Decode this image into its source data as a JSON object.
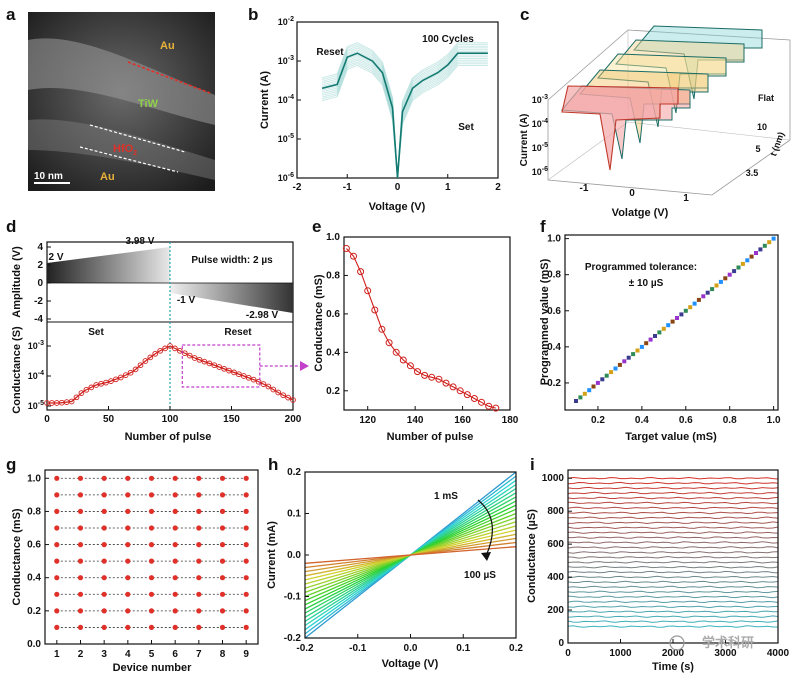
{
  "panels": {
    "a": {
      "letter": "a",
      "labels": {
        "au_top": "Au",
        "tiw": "TiW",
        "hfo2": "HfO",
        "hfo2_sub": "2",
        "au_bottom": "Au",
        "scale": "10 nm"
      },
      "colors": {
        "au": "#e8b23a",
        "tiw": "#8fcf4a",
        "hfo2": "#e0302a"
      }
    },
    "b": {
      "letter": "b",
      "annot": {
        "reset": "Reset",
        "cycles": "100 Cycles",
        "set": "Set"
      }
    },
    "c": {
      "letter": "c",
      "depth_title": "t (nm)",
      "depth_labels": [
        "Flat",
        "10",
        "5",
        "3.5"
      ],
      "colors": [
        "#f08a8a",
        "#f2c46a",
        "#f3e39a",
        "#f6d08a",
        "#8fd6d6"
      ]
    },
    "d": {
      "letter": "d",
      "annot": {
        "v2": "2 V",
        "v398": "3.98 V",
        "pw": "Pulse width: 2 µs",
        "vm1": "-1 V",
        "vm298": "-2.98 V",
        "set": "Set",
        "reset": "Reset"
      }
    },
    "e": {
      "letter": "e"
    },
    "f": {
      "letter": "f",
      "annot": {
        "line1": "Programmed tolerance:",
        "line2": "± 10 µS"
      }
    },
    "g": {
      "letter": "g"
    },
    "h": {
      "letter": "h",
      "annot": {
        "top": "1 mS",
        "bottom": "100 µS"
      }
    },
    "i": {
      "letter": "i",
      "watermark": "学术科研"
    }
  },
  "chart_data": [
    {
      "id": "b",
      "type": "line",
      "xlabel": "Voltage (V)",
      "ylabel": "Current (A)",
      "xlim": [
        -2,
        2
      ],
      "ylim_log10": [
        -6,
        -2
      ],
      "xticks": [
        "-2",
        "-1",
        "0",
        "1",
        "2"
      ],
      "yticks": [
        "10-6",
        "10-5",
        "10-4",
        "10-3",
        "10-2"
      ],
      "series": [
        {
          "x": [
            -1.5,
            -1.2,
            -1.0,
            -0.8,
            -0.5,
            -0.3,
            -0.1,
            0,
            0.1,
            0.3,
            0.5,
            0.8,
            1.0,
            1.2,
            1.5,
            1.8
          ],
          "y": [
            -3.7,
            -3.6,
            -2.9,
            -2.8,
            -3.0,
            -3.3,
            -4.2,
            -6.0,
            -4.3,
            -3.7,
            -3.5,
            -3.3,
            -3.1,
            -2.8,
            -2.8,
            -2.8
          ]
        }
      ]
    },
    {
      "id": "c",
      "type": "line",
      "xlabel": "Volatge (V)",
      "ylabel": "Current (A)",
      "xticks": [
        "-1",
        "0",
        "1"
      ],
      "yticks": [
        "10-6",
        "10-5",
        "10-4",
        "10-3"
      ]
    },
    {
      "id": "d",
      "type": "line",
      "xlabel": "Number of pulse",
      "ylabel_top": "Amplitude (V)",
      "ylabel_bottom": "Conductance (S)",
      "xlim": [
        0,
        200
      ],
      "xticks": [
        "0",
        "50",
        "100",
        "150",
        "200"
      ],
      "yticks_top": [
        "4",
        "2",
        "0",
        "-2",
        "-4"
      ],
      "yticks_bottom": [
        "10-5",
        "10-4",
        "10-3"
      ],
      "series": [
        {
          "name": "Conductance",
          "x": [
            0,
            10,
            20,
            30,
            40,
            50,
            60,
            70,
            80,
            90,
            100,
            110,
            120,
            130,
            140,
            150,
            160,
            170,
            180,
            190,
            200
          ],
          "y": [
            -4.9,
            -4.9,
            -4.85,
            -4.5,
            -4.3,
            -4.2,
            -4.05,
            -3.85,
            -3.5,
            -3.2,
            -3.0,
            -3.2,
            -3.4,
            -3.55,
            -3.7,
            -3.85,
            -4.0,
            -4.15,
            -4.35,
            -4.6,
            -4.8
          ]
        }
      ]
    },
    {
      "id": "e",
      "type": "scatter",
      "xlabel": "Number of pulse",
      "ylabel": "Conductance (mS)",
      "xlim": [
        110,
        180
      ],
      "ylim": [
        0.1,
        1.0
      ],
      "xticks": [
        "120",
        "140",
        "160",
        "180"
      ],
      "yticks": [
        "0.2",
        "0.4",
        "0.6",
        "0.8",
        "1.0"
      ],
      "x": [
        111,
        114,
        117,
        120,
        123,
        126,
        129,
        132,
        135,
        138,
        141,
        144,
        147,
        150,
        153,
        156,
        159,
        162,
        165,
        168,
        171,
        174
      ],
      "y": [
        0.94,
        0.9,
        0.82,
        0.72,
        0.62,
        0.52,
        0.45,
        0.4,
        0.36,
        0.33,
        0.3,
        0.28,
        0.27,
        0.26,
        0.24,
        0.22,
        0.2,
        0.18,
        0.16,
        0.14,
        0.12,
        0.11
      ]
    },
    {
      "id": "f",
      "type": "scatter",
      "xlabel": "Target value (mS)",
      "ylabel": "Programmed value (mS)",
      "xlim": [
        0.05,
        1.02
      ],
      "ylim": [
        0.05,
        1.02
      ],
      "xticks": [
        "0.2",
        "0.4",
        "0.6",
        "0.8",
        "1.0"
      ],
      "yticks": [
        "0.2",
        "0.4",
        "0.6",
        "0.8",
        "1.0"
      ],
      "target_start": 0.1,
      "target_end": 1.0,
      "points": 46,
      "point_colors": [
        "#3b3b8f",
        "#2e8b57",
        "#d4a017",
        "#1e90ff",
        "#8b4513",
        "#9932cc"
      ]
    },
    {
      "id": "g",
      "type": "scatter",
      "xlabel": "Device number",
      "ylabel": "Conductance (mS)",
      "xlim": [
        0.5,
        9.5
      ],
      "ylim": [
        0,
        1.05
      ],
      "xticks": [
        "1",
        "2",
        "3",
        "4",
        "5",
        "6",
        "7",
        "8",
        "9"
      ],
      "yticks": [
        "0.0",
        "0.2",
        "0.4",
        "0.6",
        "0.8",
        "1.0"
      ],
      "levels": [
        0.1,
        0.2,
        0.3,
        0.4,
        0.5,
        0.6,
        0.7,
        0.8,
        0.9,
        1.0
      ],
      "devices": [
        1,
        2,
        3,
        4,
        5,
        6,
        7,
        8,
        9
      ]
    },
    {
      "id": "h",
      "type": "line",
      "xlabel": "Voltage (V)",
      "ylabel": "Current (mA)",
      "xlim": [
        -0.2,
        0.2
      ],
      "ylim": [
        -0.2,
        0.2
      ],
      "xticks": [
        "-0.2",
        "-0.1",
        "0.0",
        "0.1",
        "0.2"
      ],
      "yticks": [
        "-0.2",
        "-0.1",
        "0.0",
        "0.1",
        "0.2"
      ],
      "conductance_mS": [
        1.0,
        0.95,
        0.9,
        0.85,
        0.8,
        0.75,
        0.7,
        0.65,
        0.6,
        0.55,
        0.5,
        0.45,
        0.4,
        0.35,
        0.3,
        0.25,
        0.2,
        0.15,
        0.1
      ]
    },
    {
      "id": "i",
      "type": "line",
      "xlabel": "Time (s)",
      "ylabel": "Conductance (µS)",
      "xlim": [
        0,
        4000
      ],
      "ylim": [
        0,
        1050
      ],
      "xticks": [
        "0",
        "1000",
        "2000",
        "3000",
        "4000"
      ],
      "yticks": [
        "0",
        "200",
        "400",
        "600",
        "800",
        "1000"
      ],
      "levels_uS": [
        100,
        130,
        160,
        190,
        220,
        250,
        280,
        310,
        340,
        370,
        400,
        430,
        460,
        490,
        520,
        550,
        580,
        610,
        640,
        670,
        700,
        730,
        760,
        790,
        820,
        850,
        880,
        910,
        940,
        970,
        1000
      ]
    }
  ]
}
